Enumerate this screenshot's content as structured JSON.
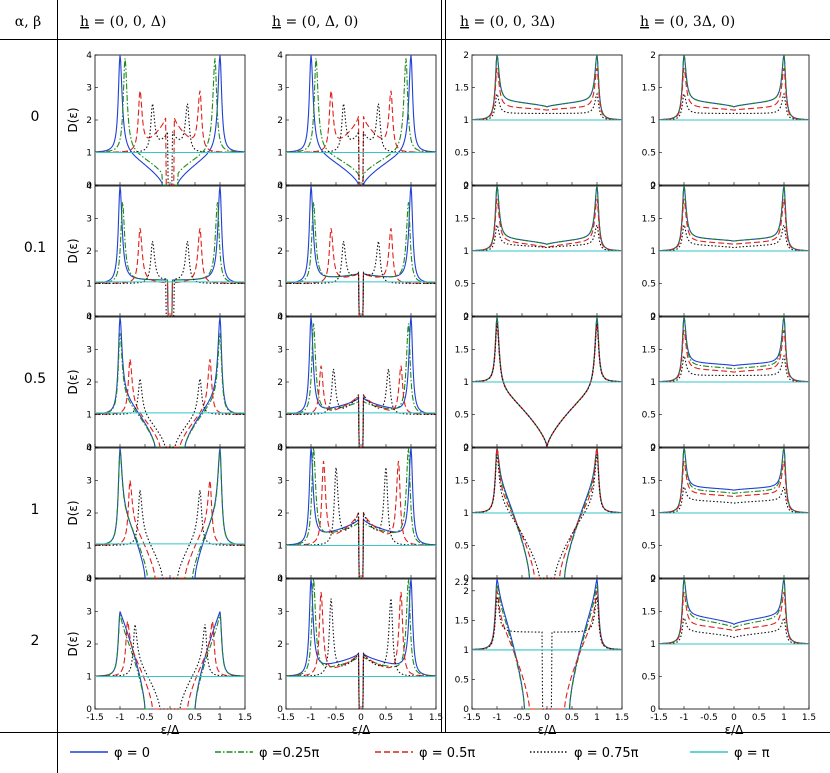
{
  "table": {
    "corner_label": "α, β",
    "column_headers": [
      {
        "h": "h",
        "rest": " = (0, 0, Δ)"
      },
      {
        "h": "h",
        "rest": " = (0, Δ, 0)"
      },
      {
        "h": "h",
        "rest": " = (0, 0, 3Δ)"
      },
      {
        "h": "h",
        "rest": " = (0, 3Δ, 0)"
      }
    ],
    "row_labels": [
      "0",
      "0.1",
      "0.5",
      "1",
      "2"
    ]
  },
  "chart_data": {
    "type": "line",
    "xlabel": "ε/Δ",
    "ylabel": "D(ε)",
    "xlim": [
      -1.5,
      1.5
    ],
    "x_ticks": [
      "-1.5",
      "-1",
      "-0.5",
      "0",
      "0.5",
      "1",
      "1.5"
    ],
    "ylim_columns_1_2": [
      0,
      4
    ],
    "y_ticks_columns_1_2": [
      "0",
      "1",
      "2",
      "3",
      "4"
    ],
    "ylim_columns_3_4": [
      0,
      2
    ],
    "y_ticks_columns_3_4": [
      "0",
      "0.5",
      "1",
      "1.5",
      "2"
    ],
    "extra_y_tick_row_5_column_3": "2.2",
    "grid": false,
    "legend_position": "bottom",
    "series": [
      {
        "name": "φ = 0",
        "color": "#1f3fd6",
        "dash": "solid"
      },
      {
        "name": "φ =0.25π",
        "color": "#1a8a1a",
        "dash": "dashdot"
      },
      {
        "name": "φ = 0.5π",
        "color": "#e0201a",
        "dash": "dashed"
      },
      {
        "name": "φ = 0.75π",
        "color": "#111111",
        "dash": "dotted"
      },
      {
        "name": "φ = π",
        "color": "#35c6c6",
        "dash": "solid"
      }
    ],
    "panels": [
      [
        {
          "gap": [
            0.15,
            0.15,
            0.08,
            0.05,
            0.0
          ],
          "edge": [
            1.0,
            0.9,
            0.6,
            0.35,
            0.0
          ],
          "peak": [
            4.0,
            3.9,
            2.9,
            2.5,
            1.0
          ],
          "center": [
            0.0,
            0.3,
            2.1,
            1.6,
            1.0
          ],
          "plateau": [
            1.1,
            1.1,
            1.05,
            1.05,
            1.0
          ]
        },
        {
          "gap": [
            0.05,
            0.05,
            0.05,
            0.08,
            0.0
          ],
          "edge": [
            1.0,
            0.95,
            0.6,
            0.35,
            0.0
          ],
          "peak": [
            4.0,
            3.5,
            2.7,
            2.3,
            1.05
          ],
          "center": [
            1.1,
            1.1,
            1.0,
            1.1,
            1.05
          ],
          "plateau": [
            1.1,
            1.1,
            1.05,
            1.05,
            1.05
          ]
        },
        {
          "gap": [
            0.3,
            0.3,
            0.2,
            0.1,
            0.0
          ],
          "edge": [
            1.0,
            1.0,
            0.8,
            0.6,
            0.0
          ],
          "peak": [
            4.0,
            3.5,
            2.7,
            2.1,
            1.1
          ],
          "center": [
            0.0,
            0.0,
            0.0,
            0.0,
            1.1
          ],
          "plateau": [
            1.7,
            1.6,
            1.3,
            1.1,
            1.05
          ]
        },
        {
          "gap": [
            0.5,
            0.45,
            0.3,
            0.15,
            0.0
          ],
          "edge": [
            1.0,
            1.0,
            0.8,
            0.6,
            0.0
          ],
          "peak": [
            4.0,
            3.9,
            3.0,
            2.7,
            1.1
          ],
          "center": [
            0.0,
            0.0,
            0.0,
            0.0,
            1.05
          ],
          "plateau": [
            2.3,
            2.2,
            1.8,
            1.5,
            1.05
          ]
        },
        {
          "gap": [
            0.5,
            0.5,
            0.35,
            0.2,
            0.0
          ],
          "edge": [
            1.0,
            1.0,
            0.85,
            0.7,
            0.0
          ],
          "peak": [
            3.0,
            2.9,
            2.7,
            2.6,
            1.0
          ],
          "center": [
            0.0,
            0.0,
            0.0,
            0.0,
            1.0
          ],
          "plateau": [
            3.0,
            2.7,
            2.0,
            1.6,
            1.0
          ]
        }
      ],
      [
        {
          "gap": [
            0.05,
            0.05,
            0.05,
            0.05,
            0.0
          ],
          "edge": [
            1.0,
            0.9,
            0.6,
            0.35,
            0.0
          ],
          "peak": [
            4.0,
            3.9,
            2.9,
            2.5,
            1.0
          ],
          "center": [
            0.0,
            0.3,
            2.1,
            1.6,
            1.0
          ],
          "plateau": [
            1.1,
            1.1,
            1.05,
            1.05,
            1.0
          ]
        },
        {
          "gap": [
            0.05,
            0.05,
            0.05,
            0.05,
            0.0
          ],
          "edge": [
            1.0,
            0.95,
            0.6,
            0.35,
            0.0
          ],
          "peak": [
            4.0,
            3.5,
            2.7,
            2.3,
            1.05
          ],
          "center": [
            1.3,
            1.3,
            1.3,
            1.3,
            1.1
          ],
          "plateau": [
            1.1,
            1.1,
            1.05,
            1.05,
            1.05
          ]
        },
        {
          "gap": [
            0.05,
            0.05,
            0.05,
            0.05,
            0.0
          ],
          "edge": [
            1.0,
            0.95,
            0.8,
            0.55,
            0.0
          ],
          "peak": [
            4.0,
            3.8,
            2.5,
            2.4,
            1.1
          ],
          "center": [
            1.5,
            1.4,
            1.6,
            1.6,
            1.1
          ],
          "plateau": [
            1.0,
            1.0,
            0.9,
            0.9,
            1.05
          ]
        },
        {
          "gap": [
            0.05,
            0.05,
            0.05,
            0.05,
            0.0
          ],
          "edge": [
            1.0,
            0.95,
            0.75,
            0.5,
            0.0
          ],
          "peak": [
            4.0,
            4.0,
            3.6,
            3.4,
            1.0
          ],
          "center": [
            1.8,
            1.7,
            2.0,
            2.0,
            1.0
          ],
          "plateau": [
            1.2,
            1.2,
            1.0,
            1.0,
            1.0
          ]
        },
        {
          "gap": [
            0.05,
            0.05,
            0.05,
            0.05,
            0.0
          ],
          "edge": [
            1.0,
            0.95,
            0.8,
            0.6,
            0.0
          ],
          "peak": [
            4.0,
            4.0,
            3.6,
            3.4,
            1.0
          ],
          "center": [
            1.7,
            1.6,
            1.7,
            1.7,
            1.0
          ],
          "plateau": [
            1.2,
            1.1,
            1.0,
            1.0,
            1.0
          ]
        }
      ],
      [
        {
          "gap": [
            0.0,
            0.0,
            0.0,
            0.0,
            0.0
          ],
          "edge": [
            1.0,
            1.0,
            1.0,
            1.0,
            0.0
          ],
          "peak": [
            2.0,
            2.0,
            1.8,
            1.4,
            1.0
          ],
          "center": [
            1.2,
            1.2,
            1.15,
            1.1,
            1.0
          ],
          "plateau": [
            1.3,
            1.3,
            1.2,
            1.1,
            1.0
          ]
        },
        {
          "gap": [
            0.0,
            0.0,
            0.0,
            0.0,
            0.0
          ],
          "edge": [
            1.0,
            1.0,
            1.0,
            1.0,
            0.0
          ],
          "peak": [
            2.0,
            2.0,
            1.8,
            1.4,
            1.0
          ],
          "center": [
            1.1,
            1.1,
            1.05,
            1.05,
            1.0
          ],
          "plateau": [
            1.2,
            1.2,
            1.15,
            1.1,
            1.0
          ]
        },
        {
          "gap": [
            0.0,
            0.0,
            0.0,
            0.0,
            0.0
          ],
          "edge": [
            1.0,
            1.0,
            1.0,
            1.0,
            0.0
          ],
          "peak": [
            2.0,
            2.0,
            1.9,
            1.9,
            1.0
          ],
          "center": [
            0.0,
            0.0,
            0.0,
            0.0,
            1.0
          ],
          "plateau": [
            0.95,
            0.95,
            0.95,
            0.95,
            1.0
          ]
        },
        {
          "gap": [
            0.35,
            0.35,
            0.25,
            0.15,
            0.0
          ],
          "edge": [
            1.0,
            1.0,
            1.0,
            1.0,
            0.0
          ],
          "peak": [
            2.0,
            2.0,
            2.0,
            1.9,
            1.0
          ],
          "center": [
            0.0,
            0.0,
            0.0,
            0.0,
            1.0
          ],
          "plateau": [
            1.6,
            1.55,
            1.4,
            1.25,
            1.0
          ]
        },
        {
          "gap": [
            0.45,
            0.45,
            0.35,
            0.1,
            0.0
          ],
          "edge": [
            1.0,
            1.0,
            1.0,
            1.0,
            0.0
          ],
          "peak": [
            2.2,
            2.1,
            2.0,
            1.9,
            1.0
          ],
          "center": [
            0.0,
            0.0,
            0.0,
            1.3,
            1.0
          ],
          "plateau": [
            2.0,
            1.9,
            1.6,
            1.3,
            1.0
          ]
        }
      ],
      [
        {
          "gap": [
            0.0,
            0.0,
            0.0,
            0.0,
            0.0
          ],
          "edge": [
            1.0,
            1.0,
            1.0,
            1.0,
            0.0
          ],
          "peak": [
            2.0,
            2.0,
            1.8,
            1.4,
            1.0
          ],
          "center": [
            1.2,
            1.2,
            1.15,
            1.1,
            1.0
          ],
          "plateau": [
            1.3,
            1.3,
            1.2,
            1.1,
            1.0
          ]
        },
        {
          "gap": [
            0.0,
            0.0,
            0.0,
            0.0,
            0.0
          ],
          "edge": [
            1.0,
            1.0,
            1.0,
            1.0,
            0.0
          ],
          "peak": [
            2.0,
            2.0,
            1.8,
            1.4,
            1.0
          ],
          "center": [
            1.15,
            1.15,
            1.1,
            1.05,
            1.0
          ],
          "plateau": [
            1.2,
            1.2,
            1.15,
            1.1,
            1.0
          ]
        },
        {
          "gap": [
            0.0,
            0.0,
            0.0,
            0.0,
            0.0
          ],
          "edge": [
            1.0,
            1.0,
            1.0,
            1.0,
            0.0
          ],
          "peak": [
            2.0,
            2.0,
            1.8,
            1.4,
            1.0
          ],
          "center": [
            1.25,
            1.2,
            1.15,
            1.1,
            1.0
          ],
          "plateau": [
            1.3,
            1.25,
            1.2,
            1.1,
            1.0
          ]
        },
        {
          "gap": [
            0.0,
            0.0,
            0.0,
            0.0,
            0.0
          ],
          "edge": [
            1.0,
            1.0,
            1.0,
            1.0,
            0.0
          ],
          "peak": [
            2.0,
            2.0,
            1.8,
            1.4,
            1.0
          ],
          "center": [
            1.35,
            1.3,
            1.25,
            1.15,
            1.0
          ],
          "plateau": [
            1.4,
            1.35,
            1.3,
            1.2,
            1.0
          ]
        },
        {
          "gap": [
            0.0,
            0.0,
            0.0,
            0.0,
            0.0
          ],
          "edge": [
            1.0,
            1.0,
            1.0,
            1.0,
            0.0
          ],
          "peak": [
            2.0,
            2.0,
            1.8,
            1.4,
            1.0
          ],
          "center": [
            1.3,
            1.25,
            1.2,
            1.1,
            1.0
          ],
          "plateau": [
            1.45,
            1.4,
            1.3,
            1.2,
            1.0
          ]
        }
      ]
    ]
  }
}
